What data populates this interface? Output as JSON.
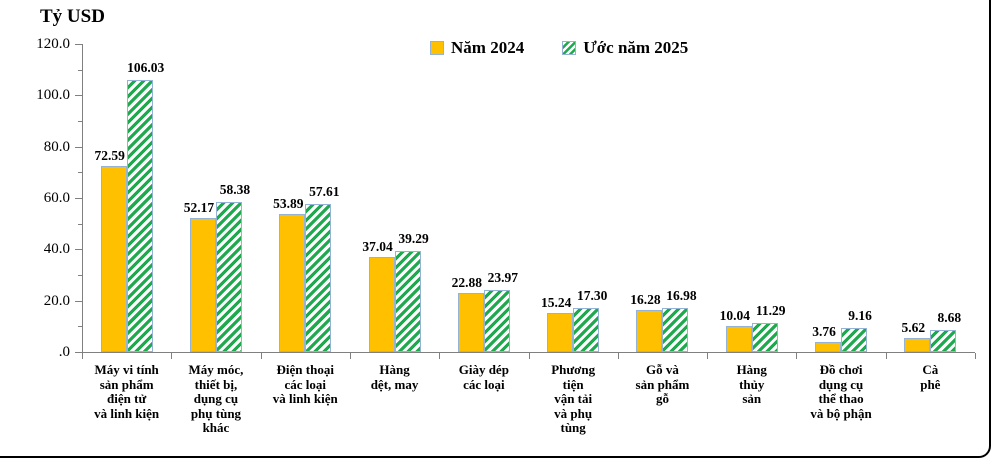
{
  "chart_data": {
    "type": "bar",
    "title": "Tỷ USD",
    "unit_label": "Tỷ USD",
    "grid": false,
    "legend_position": "top-center",
    "ylim": [
      0,
      120
    ],
    "yticks": [
      {
        "value": 120,
        "label": "120.0"
      },
      {
        "value": 100,
        "label": "100.0"
      },
      {
        "value": 80,
        "label": "80.0"
      },
      {
        "value": 60,
        "label": "60.0"
      },
      {
        "value": 40,
        "label": "40.0"
      },
      {
        "value": 20,
        "label": "20.0"
      },
      {
        "value": 0,
        "label": ".0"
      }
    ],
    "minor_tick_step": 10,
    "axis_color": "#808080",
    "bar_border_color": "#95B3D7",
    "categories": [
      {
        "label": "Máy vi tính sản phẩm điện tử và linh kiện",
        "lines": [
          "Máy vi tính",
          "sản phẩm",
          "điện tử",
          "và linh kiện"
        ]
      },
      {
        "label": "Máy móc, thiết bị, dụng cụ phụ tùng khác",
        "lines": [
          "Máy móc,",
          "thiết bị,",
          "dụng cụ",
          "phụ tùng",
          "khác"
        ]
      },
      {
        "label": "Điện thoại các loại và linh kiện",
        "lines": [
          "Điện thoại",
          "các loại",
          "và linh kiện"
        ]
      },
      {
        "label": "Hàng dệt, may",
        "lines": [
          "Hàng",
          "dệt, may"
        ]
      },
      {
        "label": "Giày dép các loại",
        "lines": [
          "Giày dép",
          "các loại"
        ]
      },
      {
        "label": "Phương tiện vận tải và phụ tùng",
        "lines": [
          "Phương",
          "tiện",
          "vận tải",
          "và phụ",
          "tùng"
        ]
      },
      {
        "label": "Gỗ và sản phẩm gỗ",
        "lines": [
          "Gỗ và",
          "sản phẩm",
          "gỗ"
        ]
      },
      {
        "label": "Hàng thủy sản",
        "lines": [
          "Hàng",
          "thủy",
          "sản"
        ]
      },
      {
        "label": "Đồ chơi dụng cụ thể thao và bộ phận",
        "lines": [
          "Đồ chơi",
          "dụng cụ",
          "thể thao",
          "và bộ phận"
        ]
      },
      {
        "label": "Cà phê",
        "lines": [
          "Cà",
          "phê"
        ]
      }
    ],
    "series": [
      {
        "name": "Năm 2024",
        "style": "solid",
        "color": "#FFC000",
        "values": [
          72.59,
          52.17,
          53.89,
          37.04,
          22.88,
          15.24,
          16.28,
          10.04,
          3.76,
          5.62
        ],
        "labels": [
          "72.59",
          "52.17",
          "53.89",
          "37.04",
          "22.88",
          "15.24",
          "16.28",
          "10.04",
          "3.76",
          "5.62"
        ]
      },
      {
        "name": "Ước năm 2025",
        "style": "hatch",
        "hatch_color": "#1FA94E",
        "values": [
          106.03,
          58.38,
          57.61,
          39.29,
          23.97,
          17.3,
          16.98,
          11.29,
          9.16,
          8.68
        ],
        "labels": [
          "106.03",
          "58.38",
          "57.61",
          "39.29",
          "23.97",
          "17.30",
          "16.98",
          "11.29",
          "9.16",
          "8.68"
        ]
      }
    ]
  }
}
